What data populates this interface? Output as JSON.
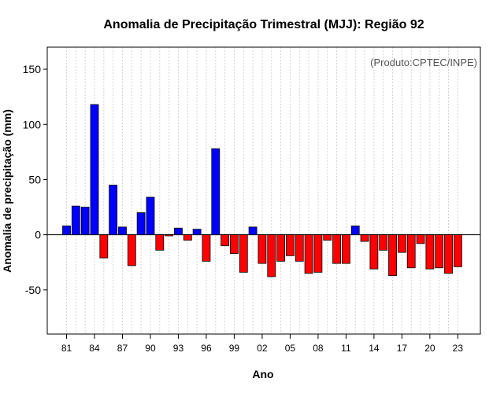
{
  "chart_data": {
    "type": "bar",
    "title": "Anomalia de Precipitação Trimestral (MJJ): Região 92",
    "xlabel": "Ano",
    "ylabel": "Anomalia de precipitação (mm)",
    "credit": "(Produto:CPTEC/INPE)",
    "ylim": [
      -90,
      170
    ],
    "yticks": [
      -50,
      0,
      50,
      100,
      150
    ],
    "categories": [
      "81",
      "82",
      "83",
      "84",
      "85",
      "86",
      "87",
      "88",
      "89",
      "90",
      "91",
      "92",
      "93",
      "94",
      "95",
      "96",
      "97",
      "98",
      "99",
      "00",
      "01",
      "02",
      "03",
      "04",
      "05",
      "06",
      "07",
      "08",
      "09",
      "10",
      "11",
      "12",
      "13",
      "14",
      "15",
      "16",
      "17",
      "18",
      "19",
      "20",
      "21",
      "22",
      "23"
    ],
    "xtick_labels": [
      "81",
      "84",
      "87",
      "90",
      "93",
      "96",
      "99",
      "02",
      "05",
      "08",
      "11",
      "14",
      "17",
      "20",
      "23"
    ],
    "values": [
      8,
      26,
      25,
      118,
      -21,
      45,
      7,
      -28,
      20,
      34,
      -14,
      -1,
      6,
      -5,
      5,
      -24,
      78,
      -10,
      -17,
      -34,
      7,
      -26,
      -38,
      -24,
      -19,
      -24,
      -35,
      -34,
      -5,
      -26,
      -26,
      8,
      -6,
      -31,
      -14,
      -37,
      -16,
      -30,
      -8,
      -31,
      -30,
      -35,
      -29
    ],
    "colors": {
      "positive": "#0000ff",
      "negative": "#ff0000",
      "outline": "#000000",
      "grid": "#d3d3d3"
    }
  }
}
